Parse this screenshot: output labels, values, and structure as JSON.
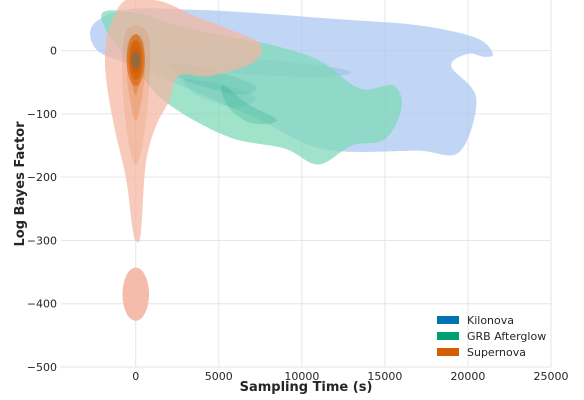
{
  "chart_data": {
    "type": "kde-contour",
    "title": "",
    "xlabel": "Sampling Time (s)",
    "ylabel": "Log Bayes Factor",
    "xlim": [
      -4500,
      25000
    ],
    "ylim": [
      -500,
      80
    ],
    "grid": true,
    "legend_position": "bottom-right",
    "x_ticks": [
      0,
      5000,
      10000,
      15000,
      20000,
      25000
    ],
    "x_tick_labels": [
      "0",
      "5000",
      "10000",
      "15000",
      "20000",
      "25000"
    ],
    "y_ticks": [
      0,
      -100,
      -200,
      -300,
      -400,
      -500
    ],
    "y_tick_labels": [
      "0",
      "−100",
      "−200",
      "−300",
      "−400",
      "−500"
    ],
    "series": [
      {
        "name": "Kilonova",
        "color": "#0072b2",
        "fill": "#a9c6f0",
        "outer_contour": [
          [
            -2600,
            40
          ],
          [
            -500,
            65
          ],
          [
            3000,
            65
          ],
          [
            7000,
            60
          ],
          [
            12000,
            50
          ],
          [
            17000,
            40
          ],
          [
            20500,
            20
          ],
          [
            21500,
            -5
          ],
          [
            21000,
            -10
          ],
          [
            20000,
            -5
          ],
          [
            19000,
            -25
          ],
          [
            20500,
            -75
          ],
          [
            19500,
            -160
          ],
          [
            17000,
            -158
          ],
          [
            13000,
            -160
          ],
          [
            10500,
            -150
          ],
          [
            7500,
            -110
          ],
          [
            4000,
            -70
          ],
          [
            0,
            -25
          ],
          [
            -2300,
            0
          ]
        ],
        "inner_contours": [
          [
            [
              1500,
              -2
            ],
            [
              4500,
              -7
            ],
            [
              8000,
              -15
            ],
            [
              11500,
              -25
            ],
            [
              13000,
              -35
            ],
            [
              11000,
              -42
            ],
            [
              7500,
              -38
            ],
            [
              4000,
              -30
            ],
            [
              1800,
              -15
            ]
          ],
          [
            [
              3000,
              -45
            ],
            [
              5500,
              -55
            ],
            [
              7200,
              -75
            ],
            [
              6000,
              -90
            ],
            [
              4000,
              -75
            ],
            [
              3200,
              -60
            ]
          ]
        ]
      },
      {
        "name": "GRB Afterglow",
        "color": "#009e73",
        "fill": "#7dd8b5",
        "outer_contour": [
          [
            -2000,
            60
          ],
          [
            0,
            60
          ],
          [
            2500,
            40
          ],
          [
            5000,
            25
          ],
          [
            8000,
            10
          ],
          [
            11000,
            -15
          ],
          [
            13500,
            -60
          ],
          [
            15500,
            -55
          ],
          [
            16000,
            -90
          ],
          [
            15000,
            -140
          ],
          [
            13000,
            -150
          ],
          [
            11000,
            -180
          ],
          [
            9000,
            -155
          ],
          [
            6000,
            -140
          ],
          [
            3500,
            -110
          ],
          [
            1500,
            -75
          ],
          [
            500,
            -45
          ],
          [
            -1500,
            20
          ]
        ],
        "inner_contours": [
          [
            [
              2000,
              -20
            ],
            [
              4500,
              -30
            ],
            [
              7200,
              -55
            ],
            [
              6500,
              -70
            ],
            [
              4500,
              -60
            ],
            [
              2800,
              -45
            ]
          ],
          [
            [
              5200,
              -55
            ],
            [
              6800,
              -85
            ],
            [
              8500,
              -110
            ],
            [
              7000,
              -115
            ],
            [
              5600,
              -90
            ]
          ]
        ]
      },
      {
        "name": "Supernova",
        "color": "#d55e00",
        "fill": "#f4b5a2",
        "outer_contour": [
          [
            -1500,
            40
          ],
          [
            -600,
            80
          ],
          [
            1500,
            78
          ],
          [
            3500,
            55
          ],
          [
            5500,
            35
          ],
          [
            7500,
            10
          ],
          [
            7000,
            -20
          ],
          [
            4500,
            -40
          ],
          [
            2600,
            -40
          ],
          [
            2000,
            -80
          ],
          [
            1200,
            -120
          ],
          [
            600,
            -180
          ],
          [
            300,
            -290
          ],
          [
            0,
            -300
          ],
          [
            -200,
            -280
          ],
          [
            -600,
            -200
          ],
          [
            -1300,
            -120
          ],
          [
            -1800,
            -40
          ],
          [
            -1800,
            10
          ]
        ],
        "inner_contours": [
          [
            [
              -700,
              20
            ],
            [
              0,
              40
            ],
            [
              800,
              20
            ],
            [
              800,
              -60
            ],
            [
              400,
              -150
            ],
            [
              0,
              -180
            ],
            [
              -400,
              -150
            ],
            [
              -800,
              -60
            ]
          ],
          [
            [
              -500,
              10
            ],
            [
              0,
              25
            ],
            [
              500,
              10
            ],
            [
              500,
              -50
            ],
            [
              0,
              -110
            ],
            [
              -500,
              -50
            ]
          ],
          [
            [
              -300,
              0
            ],
            [
              0,
              12
            ],
            [
              300,
              0
            ],
            [
              300,
              -40
            ],
            [
              0,
              -70
            ],
            [
              -300,
              -40
            ]
          ]
        ],
        "isolated_mode": {
          "x": 0,
          "y": -385,
          "x_halfwidth": 800,
          "y_halfheight": 42
        },
        "peak": {
          "x": 0,
          "y": -15
        }
      }
    ]
  },
  "legend": [
    {
      "label": "Kilonova",
      "color": "#0072b2"
    },
    {
      "label": "GRB Afterglow",
      "color": "#009e73"
    },
    {
      "label": "Supernova",
      "color": "#d55e00"
    }
  ]
}
